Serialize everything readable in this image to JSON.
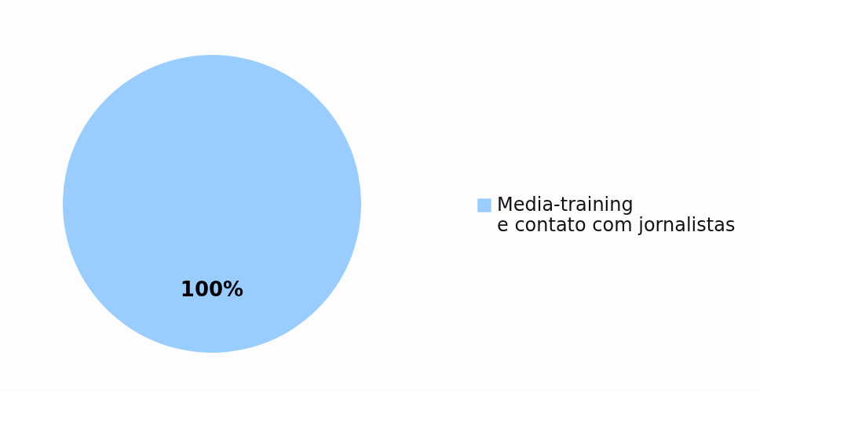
{
  "chart_data": {
    "type": "pie",
    "categories": [
      "Media-training e contato com jornalistas"
    ],
    "values": [
      100
    ],
    "colors": [
      "#99ccff"
    ],
    "value_labels": [
      "100%"
    ],
    "legend": "right"
  }
}
